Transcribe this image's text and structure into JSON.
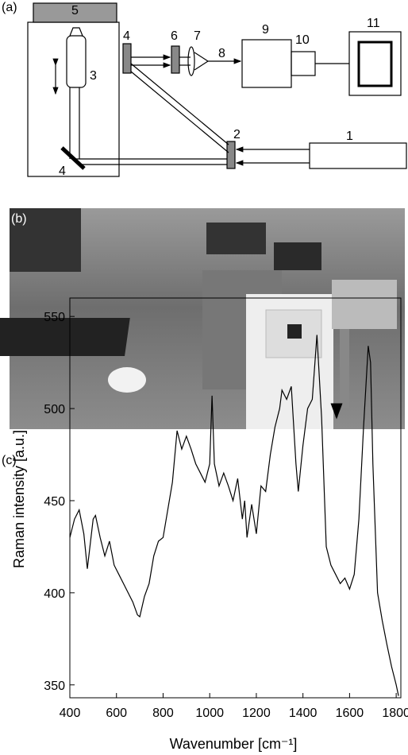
{
  "panel_a": {
    "label": "(a)",
    "labels": [
      "5",
      "3",
      "4",
      "4",
      "6",
      "7",
      "8",
      "9",
      "10",
      "11",
      "2",
      "1"
    ]
  },
  "panel_b": {
    "label": "(b)"
  },
  "chart_data": {
    "type": "line",
    "label": "(c)",
    "x_label": "Wavenumber [cm⁻¹]",
    "y_label": "Raman intensity [a.u.]",
    "x": [
      400,
      420,
      440,
      460,
      475,
      500,
      510,
      530,
      550,
      570,
      590,
      610,
      630,
      650,
      670,
      690,
      700,
      720,
      740,
      760,
      780,
      800,
      820,
      840,
      860,
      880,
      900,
      920,
      940,
      960,
      980,
      1000,
      1010,
      1020,
      1040,
      1060,
      1080,
      1100,
      1120,
      1140,
      1150,
      1160,
      1180,
      1200,
      1220,
      1240,
      1260,
      1280,
      1300,
      1310,
      1330,
      1350,
      1370,
      1380,
      1400,
      1420,
      1440,
      1460,
      1480,
      1500,
      1520,
      1540,
      1560,
      1580,
      1600,
      1620,
      1640,
      1660,
      1680,
      1690,
      1700,
      1720,
      1740,
      1760,
      1780,
      1800,
      1810
    ],
    "series": [
      {
        "color": "#000000",
        "values": [
          430,
          440,
          445,
          432,
          413,
          440,
          442,
          430,
          420,
          428,
          415,
          410,
          405,
          400,
          395,
          388,
          387,
          398,
          405,
          420,
          428,
          430,
          445,
          460,
          488,
          478,
          485,
          478,
          470,
          465,
          460,
          470,
          507,
          470,
          458,
          465,
          458,
          450,
          462,
          440,
          450,
          430,
          448,
          432,
          458,
          455,
          475,
          490,
          500,
          510,
          505,
          512,
          470,
          455,
          480,
          500,
          505,
          540,
          495,
          425,
          415,
          410,
          405,
          408,
          402,
          410,
          440,
          490,
          534,
          525,
          470,
          400,
          385,
          372,
          360,
          350,
          344
        ]
      }
    ],
    "xlim": [
      400,
      1820
    ],
    "ylim": [
      343,
      560
    ],
    "xticks": [
      400,
      600,
      800,
      1000,
      1200,
      1400,
      1600,
      1800
    ],
    "yticks": [
      350,
      400,
      450,
      500,
      550
    ]
  }
}
